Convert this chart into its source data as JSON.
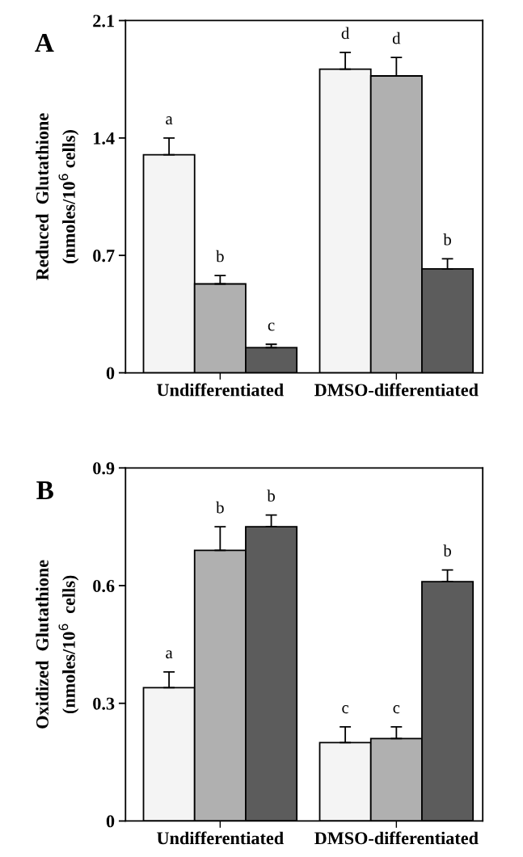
{
  "chart_data": [
    {
      "type": "bar",
      "title": "A",
      "ylabel": "Reduced  Glutathione\n(nmoles/10$^{6}$ cells)",
      "categories": [
        "Undifferentiated",
        "DMSO-differentiated"
      ],
      "series": [
        {
          "color": "#f4f4f4",
          "values": [
            1.3,
            1.81
          ],
          "errors": [
            0.1,
            0.1
          ]
        },
        {
          "color": "#b0b0b0",
          "values": [
            0.53,
            1.77
          ],
          "errors": [
            0.05,
            0.11
          ]
        },
        {
          "color": "#5c5c5c",
          "values": [
            0.15,
            0.62
          ],
          "errors": [
            0.02,
            0.06
          ]
        }
      ],
      "ylim": [
        0,
        2.1
      ],
      "yticks": [
        0,
        0.7,
        1.4,
        2.1
      ],
      "grid": false,
      "legend": false,
      "annotations": [
        "a",
        "b",
        "c",
        "d",
        "d",
        "b"
      ]
    },
    {
      "type": "bar",
      "title": "B",
      "ylabel": "Oxidized  Glutathione\n(nmoles/10$^{6}$  cells)",
      "categories": [
        "Undifferentiated",
        "DMSO-differentiated"
      ],
      "series": [
        {
          "color": "#f4f4f4",
          "values": [
            0.34,
            0.2
          ],
          "errors": [
            0.04,
            0.04
          ]
        },
        {
          "color": "#b0b0b0",
          "values": [
            0.69,
            0.21
          ],
          "errors": [
            0.06,
            0.03
          ]
        },
        {
          "color": "#5c5c5c",
          "values": [
            0.75,
            0.61
          ],
          "errors": [
            0.03,
            0.03
          ]
        }
      ],
      "ylim": [
        0,
        0.9
      ],
      "yticks": [
        0,
        0.3,
        0.6,
        0.9
      ],
      "grid": false,
      "legend": false,
      "annotations": [
        "a",
        "b",
        "b",
        "c",
        "c",
        "b"
      ]
    }
  ]
}
